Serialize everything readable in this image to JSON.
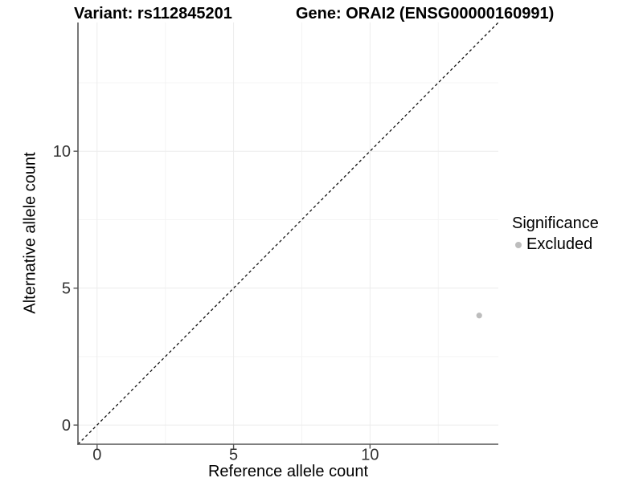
{
  "header": {
    "variant_title": "Variant: rs112845201",
    "gene_title": "Gene: ORAI2 (ENSG00000160991)"
  },
  "legend": {
    "title": "Significance",
    "entries": [
      {
        "label": "Excluded",
        "color": "#bdbdbd"
      }
    ]
  },
  "colors": {
    "background": "#ffffff",
    "grid_major": "#ececec",
    "grid_minor": "#f4f4f4",
    "axis_line": "#555555",
    "tick_text": "#333333",
    "reference_line": "#111111",
    "point": "#bdbdbd"
  },
  "chart_data": {
    "type": "scatter",
    "title": "Variant: rs112845201 / Gene: ORAI2 (ENSG00000160991)",
    "xlabel": "Reference allele count",
    "ylabel": "Alternative allele count",
    "xlim": [
      -0.7,
      14.7
    ],
    "ylim": [
      -0.7,
      14.7
    ],
    "x_ticks": [
      0,
      5,
      10
    ],
    "y_ticks": [
      0,
      5,
      10
    ],
    "minor_gridlines": [
      2.5,
      7.5,
      12.5
    ],
    "grid": "major+minor",
    "legend_position": "right",
    "reference_line": {
      "type": "identity y=x",
      "style": "dashed",
      "from": [
        -0.7,
        -0.7
      ],
      "to": [
        14.7,
        14.7
      ]
    },
    "series": [
      {
        "name": "Excluded",
        "color": "#bdbdbd",
        "points": [
          {
            "x": 14,
            "y": 4
          }
        ]
      }
    ]
  }
}
